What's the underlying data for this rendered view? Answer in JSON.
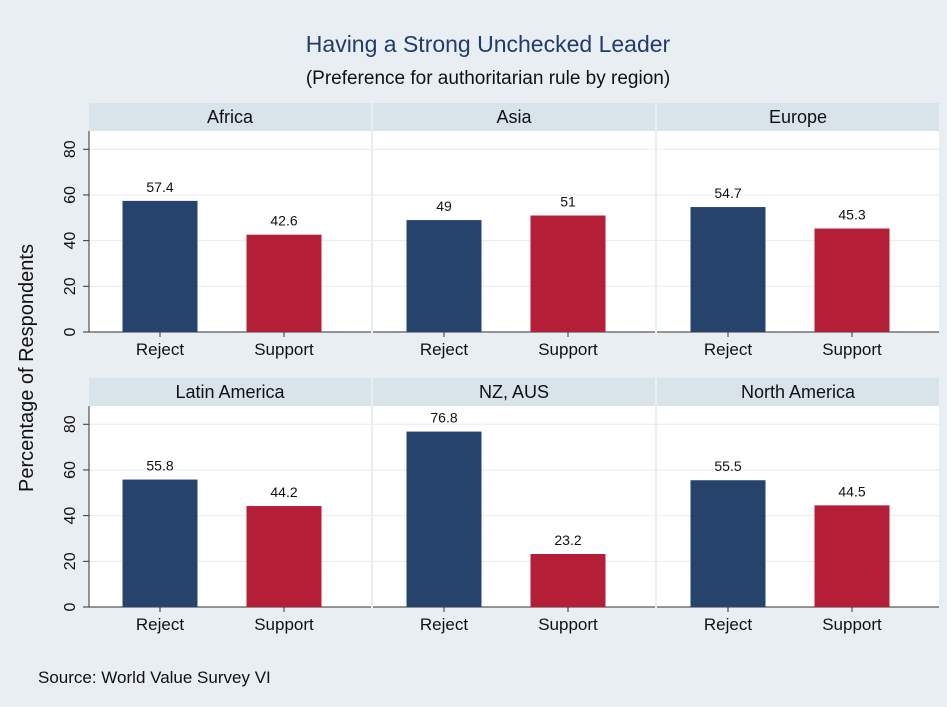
{
  "chart_data": {
    "type": "bar",
    "title": "Having a Strong Unchecked Leader",
    "subtitle": "(Preference for authoritarian rule by region)",
    "ylabel": "Percentage of Respondents",
    "ylim": [
      0,
      88
    ],
    "yticks": [
      "0",
      "20",
      "40",
      "60",
      "80"
    ],
    "grid": true,
    "categories": [
      "Reject",
      "Support"
    ],
    "colors": {
      "Reject": "#26446b",
      "Support": "#b41f37"
    },
    "panels": [
      {
        "name": "Africa",
        "values": [
          57.4,
          42.6
        ],
        "labels": [
          "57.4",
          "42.6"
        ]
      },
      {
        "name": "Asia",
        "values": [
          49,
          51
        ],
        "labels": [
          "49",
          "51"
        ]
      },
      {
        "name": "Europe",
        "values": [
          54.7,
          45.3
        ],
        "labels": [
          "54.7",
          "45.3"
        ]
      },
      {
        "name": "Latin America",
        "values": [
          55.8,
          44.2
        ],
        "labels": [
          "55.8",
          "44.2"
        ]
      },
      {
        "name": "NZ, AUS",
        "values": [
          76.8,
          23.2
        ],
        "labels": [
          "76.8",
          "23.2"
        ]
      },
      {
        "name": "North America",
        "values": [
          55.5,
          44.5
        ],
        "labels": [
          "55.5",
          "44.5"
        ]
      }
    ],
    "note": "Source: World Value Survey VI"
  }
}
